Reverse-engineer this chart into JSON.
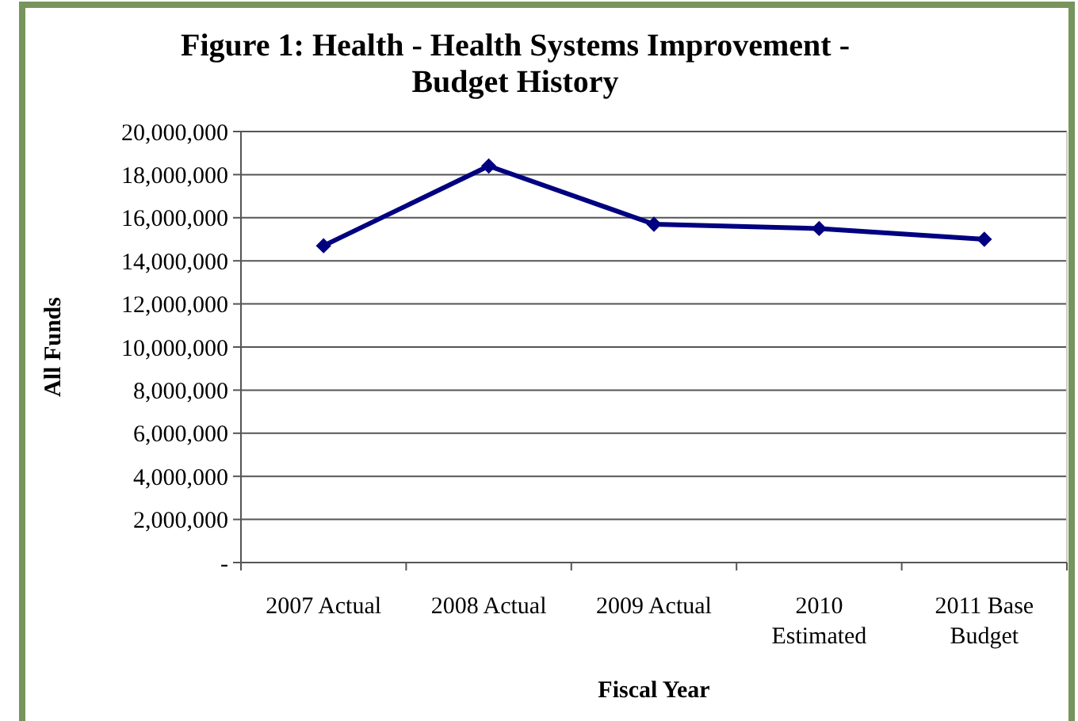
{
  "chart_data": {
    "type": "line",
    "title": "Figure 1: Health - Health Systems Improvement - Budget History",
    "xlabel": "Fiscal Year",
    "ylabel": "All Funds",
    "categories": [
      "2007 Actual",
      "2008 Actual",
      "2009 Actual",
      "2010 Estimated",
      "2011 Base Budget"
    ],
    "series": [
      {
        "color": "#000080",
        "values": [
          14700000,
          18400000,
          15700000,
          15500000,
          15000000
        ]
      }
    ],
    "ylim": [
      0,
      20000000
    ],
    "yticks": [
      {
        "value": 0,
        "label": "-"
      },
      {
        "value": 2000000,
        "label": "2,000,000"
      },
      {
        "value": 4000000,
        "label": "4,000,000"
      },
      {
        "value": 6000000,
        "label": "6,000,000"
      },
      {
        "value": 8000000,
        "label": "8,000,000"
      },
      {
        "value": 10000000,
        "label": "10,000,000"
      },
      {
        "value": 12000000,
        "label": "12,000,000"
      },
      {
        "value": 14000000,
        "label": "14,000,000"
      },
      {
        "value": 16000000,
        "label": "16,000,000"
      },
      {
        "value": 18000000,
        "label": "18,000,000"
      },
      {
        "value": 20000000,
        "label": "20,000,000"
      }
    ],
    "grid": "y",
    "marker": "diamond",
    "line_style": "solid"
  }
}
